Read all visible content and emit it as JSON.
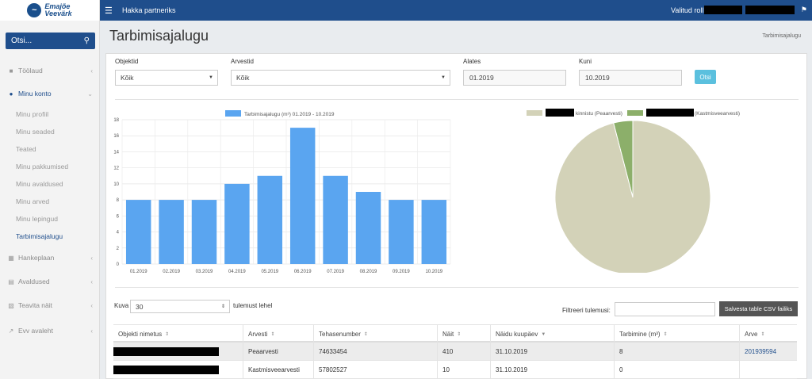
{
  "brand": {
    "logo_line1": "Emajõe",
    "logo_line2": "Veevärk"
  },
  "topbar": {
    "menu_icon": "hamburger-icon",
    "partner_label": "Hakka partneriks",
    "role_label": "Valitud roll:",
    "bell_icon": "bell-icon"
  },
  "search": {
    "label": "Otsi...",
    "icon": "search-icon"
  },
  "sidebar": {
    "items": [
      {
        "label": "Töölaud",
        "icon": "dashboard-icon"
      },
      {
        "label": "Minu konto",
        "icon": "user-icon"
      },
      {
        "label": "Hankeplaan",
        "icon": "table-icon"
      },
      {
        "label": "Avaldused",
        "icon": "document-icon"
      },
      {
        "label": "Teavita näit",
        "icon": "report-icon"
      },
      {
        "label": "Evv avaleht",
        "icon": "external-link-icon"
      }
    ],
    "sub_items": [
      {
        "label": "Minu profiil"
      },
      {
        "label": "Minu seaded"
      },
      {
        "label": "Teated"
      },
      {
        "label": "Minu pakkumised"
      },
      {
        "label": "Minu avaldused"
      },
      {
        "label": "Minu arved"
      },
      {
        "label": "Minu lepingud"
      },
      {
        "label": "Tarbimisajalugu"
      }
    ]
  },
  "page": {
    "title": "Tarbimisajalugu",
    "breadcrumb": "Tarbimisajalugu"
  },
  "filters": {
    "objektid_label": "Objektid",
    "objektid_value": "Kõik",
    "arvestid_label": "Arvestid",
    "arvestid_value": "Kõik",
    "alates_label": "Alates",
    "alates_value": "01.2019",
    "kuni_label": "Kuni",
    "kuni_value": "10.2019",
    "search_button": "Otsi"
  },
  "chart_data": [
    {
      "type": "bar",
      "legend": "Tarbimisajalugu (m³) 01.2019 - 10.2019",
      "categories": [
        "01.2019",
        "02.2019",
        "03.2019",
        "04.2019",
        "05.2019",
        "06.2019",
        "07.2019",
        "08.2019",
        "09.2019",
        "10.2019"
      ],
      "values": [
        8,
        8,
        8,
        10,
        11,
        17,
        11,
        9,
        8,
        8
      ],
      "ylim": [
        0,
        18
      ],
      "yticks": [
        "0",
        "2",
        "4",
        "6",
        "8",
        "10",
        "12",
        "14",
        "16",
        "18"
      ],
      "color": "#5aa5f0",
      "grid": true,
      "legend_position": "top"
    },
    {
      "type": "pie",
      "legend": [
        {
          "label": "kinnistu (Peaarvesti)",
          "color": "#d3d2b8"
        },
        {
          "label": "(Kastmisveearvesti)",
          "color": "#8caf6a"
        }
      ],
      "values": [
        96,
        4
      ],
      "legend_position": "top"
    }
  ],
  "table_controls": {
    "kuva_label": "Kuva",
    "kuva_value": "30",
    "per_page_suffix": "tulemust lehel",
    "filter_label": "Filtreeri tulemusi:",
    "csv_button": "Salvesta table CSV failiks"
  },
  "table": {
    "headers": [
      "Objekti nimetus",
      "Arvesti",
      "Tehasenumber",
      "Näit",
      "Näidu kuupäev",
      "Tarbimine (m³)",
      "Arve"
    ],
    "rows": [
      {
        "arvesti": "Peaarvesti",
        "tehasenumber": "74633454",
        "nait": "410",
        "kuupaev": "31.10.2019",
        "tarbimine": "8",
        "arve": "201939594"
      },
      {
        "arvesti": "Kastmisveearvesti",
        "tehasenumber": "57802527",
        "nait": "10",
        "kuupaev": "31.10.2019",
        "tarbimine": "0",
        "arve": ""
      }
    ]
  }
}
